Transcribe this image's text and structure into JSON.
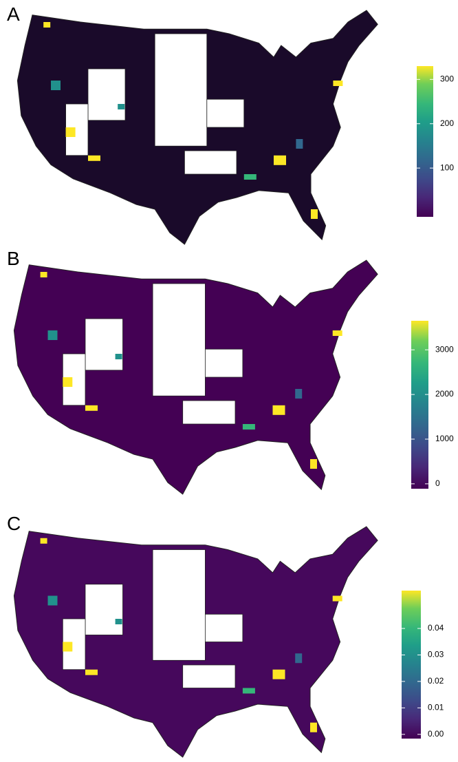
{
  "maps": [
    {
      "label": "A",
      "colorbar": {
        "lim": [
          -10,
          330
        ],
        "ticks": [
          100,
          200,
          300
        ]
      }
    },
    {
      "label": "B",
      "colorbar": {
        "lim": [
          -110,
          3650
        ],
        "ticks": [
          0,
          1000,
          2000,
          3000
        ]
      }
    },
    {
      "label": "C",
      "colorbar": {
        "lim": [
          -0.0016,
          0.0543
        ],
        "ticks": [
          {
            "value": 0,
            "label": "0.00"
          },
          0.01,
          0.02,
          0.03,
          0.04
        ]
      }
    }
  ]
}
